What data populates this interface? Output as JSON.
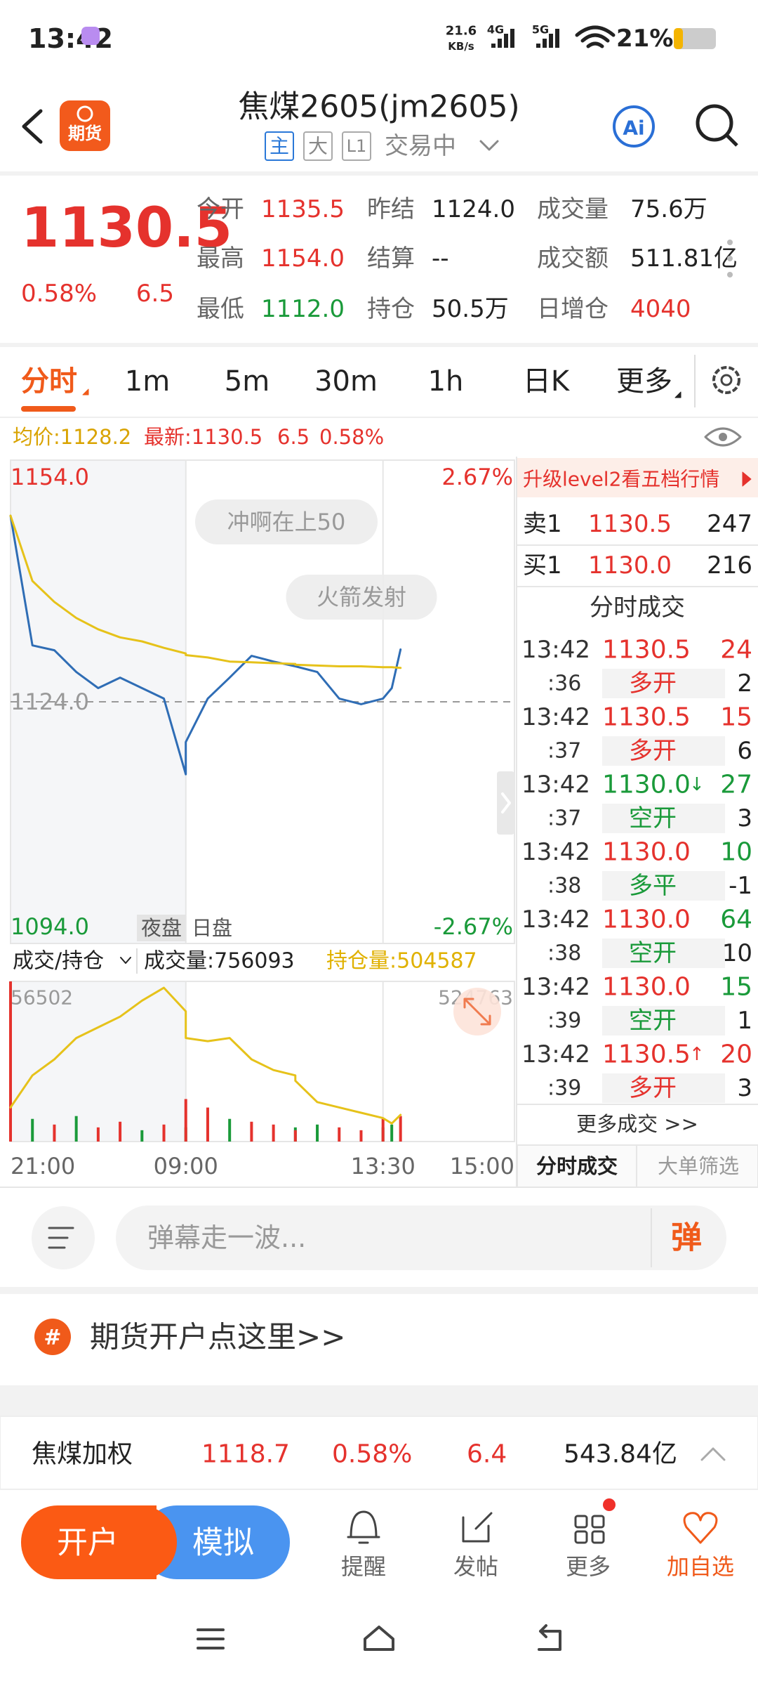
{
  "status_bar": {
    "time": "13:42",
    "net_speed": "21.6",
    "net_unit": "KB/s",
    "sim1": "4G",
    "sim2": "5G",
    "battery": "21%"
  },
  "header": {
    "logo": "期货",
    "title": "焦煤2605(jm2605)",
    "tags": [
      "主",
      "大",
      "L1"
    ],
    "state": "交易中",
    "ai": "Ai"
  },
  "quote": {
    "price": "1130.5",
    "change_pct": "0.58%",
    "change": "6.5",
    "fields": [
      {
        "label": "今开",
        "value": "1135.5",
        "color": "#e5322d"
      },
      {
        "label": "昨结",
        "value": "1124.0",
        "color": "#222222"
      },
      {
        "label": "成交量",
        "value": "75.6万",
        "color": "#222222"
      },
      {
        "label": "最高",
        "value": "1154.0",
        "color": "#e5322d"
      },
      {
        "label": "结算",
        "value": "--",
        "color": "#222222"
      },
      {
        "label": "成交额",
        "value": "511.81亿",
        "color": "#222222"
      },
      {
        "label": "最低",
        "value": "1112.0",
        "color": "#1a9a3a"
      },
      {
        "label": "持仓",
        "value": "50.5万",
        "color": "#222222"
      },
      {
        "label": "日增仓",
        "value": "4040",
        "color": "#e5322d"
      }
    ]
  },
  "tabs": [
    "分时",
    "1m",
    "5m",
    "30m",
    "1h",
    "日K",
    "更多"
  ],
  "info_line": {
    "avg": "均价:1128.2",
    "latest": "最新:1130.5",
    "change": "6.5",
    "change_pct": "0.58%"
  },
  "chart_data": [
    {
      "type": "line",
      "x": [
        "21:00",
        "21:15",
        "21:30",
        "21:45",
        "22:00",
        "22:15",
        "22:30",
        "22:45",
        "23:00",
        "09:00",
        "09:15",
        "09:30",
        "09:45",
        "10:00",
        "10:15",
        "10:30",
        "10:45",
        "11:00",
        "11:15",
        "11:30",
        "13:30",
        "13:36",
        "13:42"
      ],
      "series": [
        {
          "color": "#2f6db5",
          "values": [
            1147.1,
            1131,
            1130.4,
            1127.7,
            1125.7,
            1127,
            1125.7,
            1124.4,
            1115,
            1119,
            1124.4,
            1127,
            1129.7,
            1129,
            1128.4,
            1128.4,
            1127.7,
            1124.4,
            1123.7,
            1124.4,
            1124.4,
            1125.7,
            1130.5
          ]
        },
        {
          "color": "#e6c21a",
          "values": [
            1147.1,
            1139,
            1136.4,
            1134.4,
            1133,
            1132,
            1131.5,
            1130.7,
            1130,
            1129.8,
            1129.5,
            1129,
            1128.9,
            1128.8,
            1128.7,
            1128.6,
            1128.5,
            1128.4,
            1128.4,
            1128.3,
            1128.3,
            1128.3,
            1128.2
          ]
        }
      ],
      "ylim": [
        1094,
        1154
      ],
      "yticks": [
        {
          "value": 1154,
          "label": "1154.0"
        },
        {
          "value": 1124,
          "label": "1124.0"
        },
        {
          "value": 1094,
          "label": "1094.0"
        }
      ],
      "y2lim": [
        -2.67,
        2.67
      ],
      "y2ticks": [
        {
          "value": 2.67,
          "label": "2.67%"
        },
        {
          "value": -2.67,
          "label": "-2.67%"
        }
      ],
      "grid": true,
      "sessions": [
        "夜盘",
        "日盘"
      ],
      "annotations": [
        "冲啊在上50",
        "火箭发射"
      ]
    },
    {
      "type": "bar",
      "x": [
        "21:00",
        "21:15",
        "21:30",
        "21:45",
        "22:00",
        "22:15",
        "22:30",
        "22:45",
        "23:00",
        "09:00",
        "09:15",
        "09:30",
        "09:45",
        "10:00",
        "10:15",
        "10:30",
        "10:45",
        "11:00",
        "11:15",
        "11:30",
        "13:30",
        "13:36",
        "13:42"
      ],
      "series": [
        {
          "colors": [
            "#e5322d",
            "#1a9a3a",
            "#e5322d",
            "#1a9a3a",
            "#e5322d",
            "#e5322d",
            "#1a9a3a",
            "#e5322d",
            "#1a9a3a",
            "#e5322d",
            "#e5322d",
            "#1a9a3a",
            "#e5322d",
            "#e5322d",
            "#1a9a3a",
            "#e5322d",
            "#1a9a3a",
            "#e5322d",
            "#e5322d",
            "#1a9a3a",
            "#e5322d",
            "#1a9a3a",
            "#e5322d"
          ],
          "values": [
            56502,
            8000,
            6000,
            9000,
            5000,
            7000,
            4000,
            6000,
            5000,
            15000,
            12000,
            8000,
            7000,
            6000,
            5000,
            4000,
            6000,
            5000,
            4000,
            5000,
            8000,
            6000,
            9000
          ]
        },
        {
          "type": "line",
          "axis": "y2",
          "color": "#e6c21a",
          "values": [
            505717,
            510559,
            512980,
            516209,
            517823,
            519436,
            521858,
            523795,
            520244,
            516209,
            515724,
            516209,
            512980,
            511366,
            510559,
            509752,
            506524,
            505717,
            504910,
            504103,
            504103,
            503296,
            504587
          ]
        }
      ],
      "ylim": [
        0,
        56502
      ],
      "yticks": [
        56502
      ],
      "y2lim": [
        500552,
        524763
      ],
      "y2ticks": [
        524763
      ],
      "xticks": [
        "21:00",
        "09:00",
        "13:30",
        "15:00"
      ]
    }
  ],
  "volume_header": {
    "selector": "成交/持仓",
    "volume": "成交量:756093",
    "open_interest": "持仓量:504587"
  },
  "order_book": {
    "banner": "升级level2看五档行情",
    "rows": [
      [
        "卖1",
        "1130.5",
        "247"
      ],
      [
        "买1",
        "1130.0",
        "216"
      ]
    ]
  },
  "trades": {
    "title": "分时成交",
    "rows": [
      {
        "time": "13:42",
        "sec": ":36",
        "price": "1130.5",
        "vol": "24",
        "type": "多开",
        "oi": "2",
        "price_color": "#e5322d",
        "color": "#e5322d"
      },
      {
        "time": "13:42",
        "sec": ":37",
        "price": "1130.5",
        "vol": "15",
        "type": "多开",
        "oi": "6",
        "price_color": "#e5322d",
        "color": "#e5322d"
      },
      {
        "time": "13:42",
        "sec": ":37",
        "price": "1130.0",
        "arrow": "↓",
        "vol": "27",
        "type": "空开",
        "oi": "3",
        "price_color": "#1a9a3a",
        "color": "#1a9a3a"
      },
      {
        "time": "13:42",
        "sec": ":38",
        "price": "1130.0",
        "vol": "10",
        "type": "多平",
        "oi": "-1",
        "price_color": "#e5322d",
        "color": "#1a9a3a"
      },
      {
        "time": "13:42",
        "sec": ":38",
        "price": "1130.0",
        "vol": "64",
        "type": "空开",
        "oi": "10",
        "price_color": "#e5322d",
        "color": "#1a9a3a"
      },
      {
        "time": "13:42",
        "sec": ":39",
        "price": "1130.0",
        "vol": "15",
        "type": "空开",
        "oi": "1",
        "price_color": "#e5322d",
        "color": "#1a9a3a"
      },
      {
        "time": "13:42",
        "sec": ":39",
        "price": "1130.5",
        "arrow": "↑",
        "vol": "20",
        "type": "多开",
        "oi": "3",
        "price_color": "#e5322d",
        "color": "#e5322d"
      }
    ],
    "more": "更多成交 >>",
    "tabs": [
      "分时成交",
      "大单筛选"
    ]
  },
  "danmaku_input": {
    "placeholder": "弹幕走一波...",
    "button": "弹"
  },
  "promo": {
    "icon": "#",
    "text": "期货开户点这里>>"
  },
  "ticker": {
    "name": "焦煤加权",
    "price": "1118.7",
    "change_pct": "0.58%",
    "change": "6.4",
    "amount": "543.84亿"
  },
  "bottom_nav": {
    "open": "开户",
    "demo": "模拟",
    "items": [
      "提醒",
      "发帖",
      "更多",
      "加自选"
    ]
  }
}
